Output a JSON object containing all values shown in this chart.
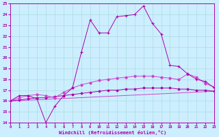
{
  "xlabel": "Windchill (Refroidissement éolien,°C)",
  "x_ticks": [
    0,
    1,
    2,
    3,
    4,
    5,
    6,
    7,
    8,
    9,
    10,
    11,
    12,
    13,
    14,
    15,
    16,
    17,
    18,
    19,
    20,
    21,
    22,
    23
  ],
  "ylim": [
    14,
    25
  ],
  "xlim": [
    0,
    23
  ],
  "yticks": [
    14,
    15,
    16,
    17,
    18,
    19,
    20,
    21,
    22,
    23,
    24,
    25
  ],
  "bg_color": "#cceeff",
  "grid_color": "#aadddd",
  "line_color": "#aa00aa",
  "line_color2": "#cc44cc",
  "line1_x": [
    0,
    1,
    2,
    3,
    4,
    5,
    6,
    7,
    8,
    9,
    10,
    11,
    12,
    13,
    14,
    15,
    16,
    17,
    18,
    19,
    20,
    21,
    22,
    23
  ],
  "line1_y": [
    16.0,
    16.5,
    16.5,
    16.2,
    14.0,
    15.5,
    16.5,
    17.2,
    20.5,
    23.5,
    22.3,
    22.3,
    23.8,
    23.9,
    24.0,
    24.8,
    23.2,
    22.2,
    19.3,
    19.2,
    18.5,
    18.0,
    17.8,
    17.2
  ],
  "line2_x": [
    0,
    1,
    2,
    3,
    4,
    5,
    6,
    7,
    8,
    9,
    10,
    11,
    12,
    13,
    14,
    15,
    16,
    17,
    18,
    19,
    20,
    21,
    22,
    23
  ],
  "line2_y": [
    16.0,
    16.3,
    16.5,
    16.6,
    16.5,
    16.3,
    16.8,
    17.2,
    17.5,
    17.7,
    17.9,
    18.0,
    18.1,
    18.2,
    18.3,
    18.3,
    18.3,
    18.2,
    18.1,
    18.0,
    18.5,
    18.2,
    17.6,
    17.3
  ],
  "line3_x": [
    0,
    1,
    2,
    3,
    4,
    5,
    6,
    7,
    8,
    9,
    10,
    11,
    12,
    13,
    14,
    15,
    16,
    17,
    18,
    19,
    20,
    21,
    22,
    23
  ],
  "line3_y": [
    16.0,
    16.1,
    16.2,
    16.3,
    16.3,
    16.4,
    16.5,
    16.6,
    16.7,
    16.8,
    16.9,
    17.0,
    17.0,
    17.1,
    17.1,
    17.2,
    17.2,
    17.2,
    17.2,
    17.1,
    17.1,
    17.0,
    17.0,
    16.9
  ],
  "line4_x": [
    0,
    23
  ],
  "line4_y": [
    16.0,
    16.9
  ]
}
